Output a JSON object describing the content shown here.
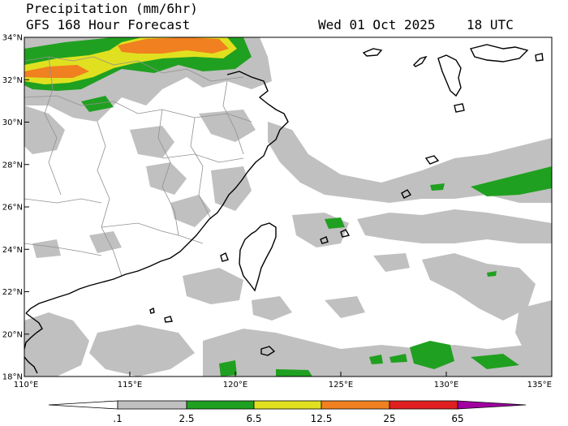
{
  "header": {
    "title": "Precipitation (mm/6hr)",
    "subtitle": "GFS 168 Hour Forecast",
    "valid_time": "Wed 01 Oct 2025    18 UTC"
  },
  "axes": {
    "lat_labels": [
      "34°N",
      "32°N",
      "30°N",
      "28°N",
      "26°N",
      "24°N",
      "22°N",
      "20°N",
      "18°N"
    ],
    "lon_labels": [
      "110°E",
      "115°E",
      "120°E",
      "125°E",
      "130°E",
      "135°E"
    ]
  },
  "colorbar": {
    "labels": [
      ".1",
      "2.5",
      "6.5",
      "12.5",
      "25",
      "65"
    ],
    "colors": [
      "#ffffff",
      "#c0c0c0",
      "#20a020",
      "#e0e020",
      "#f08020",
      "#e02020",
      "#a000a0"
    ]
  },
  "colors": {
    "coast": "#000000",
    "borders": "#909090",
    "light_rain": "#c0c0c0",
    "moderate_rain": "#20a020",
    "heavy_rain": "#e0e020",
    "very_heavy_rain": "#f08020"
  }
}
